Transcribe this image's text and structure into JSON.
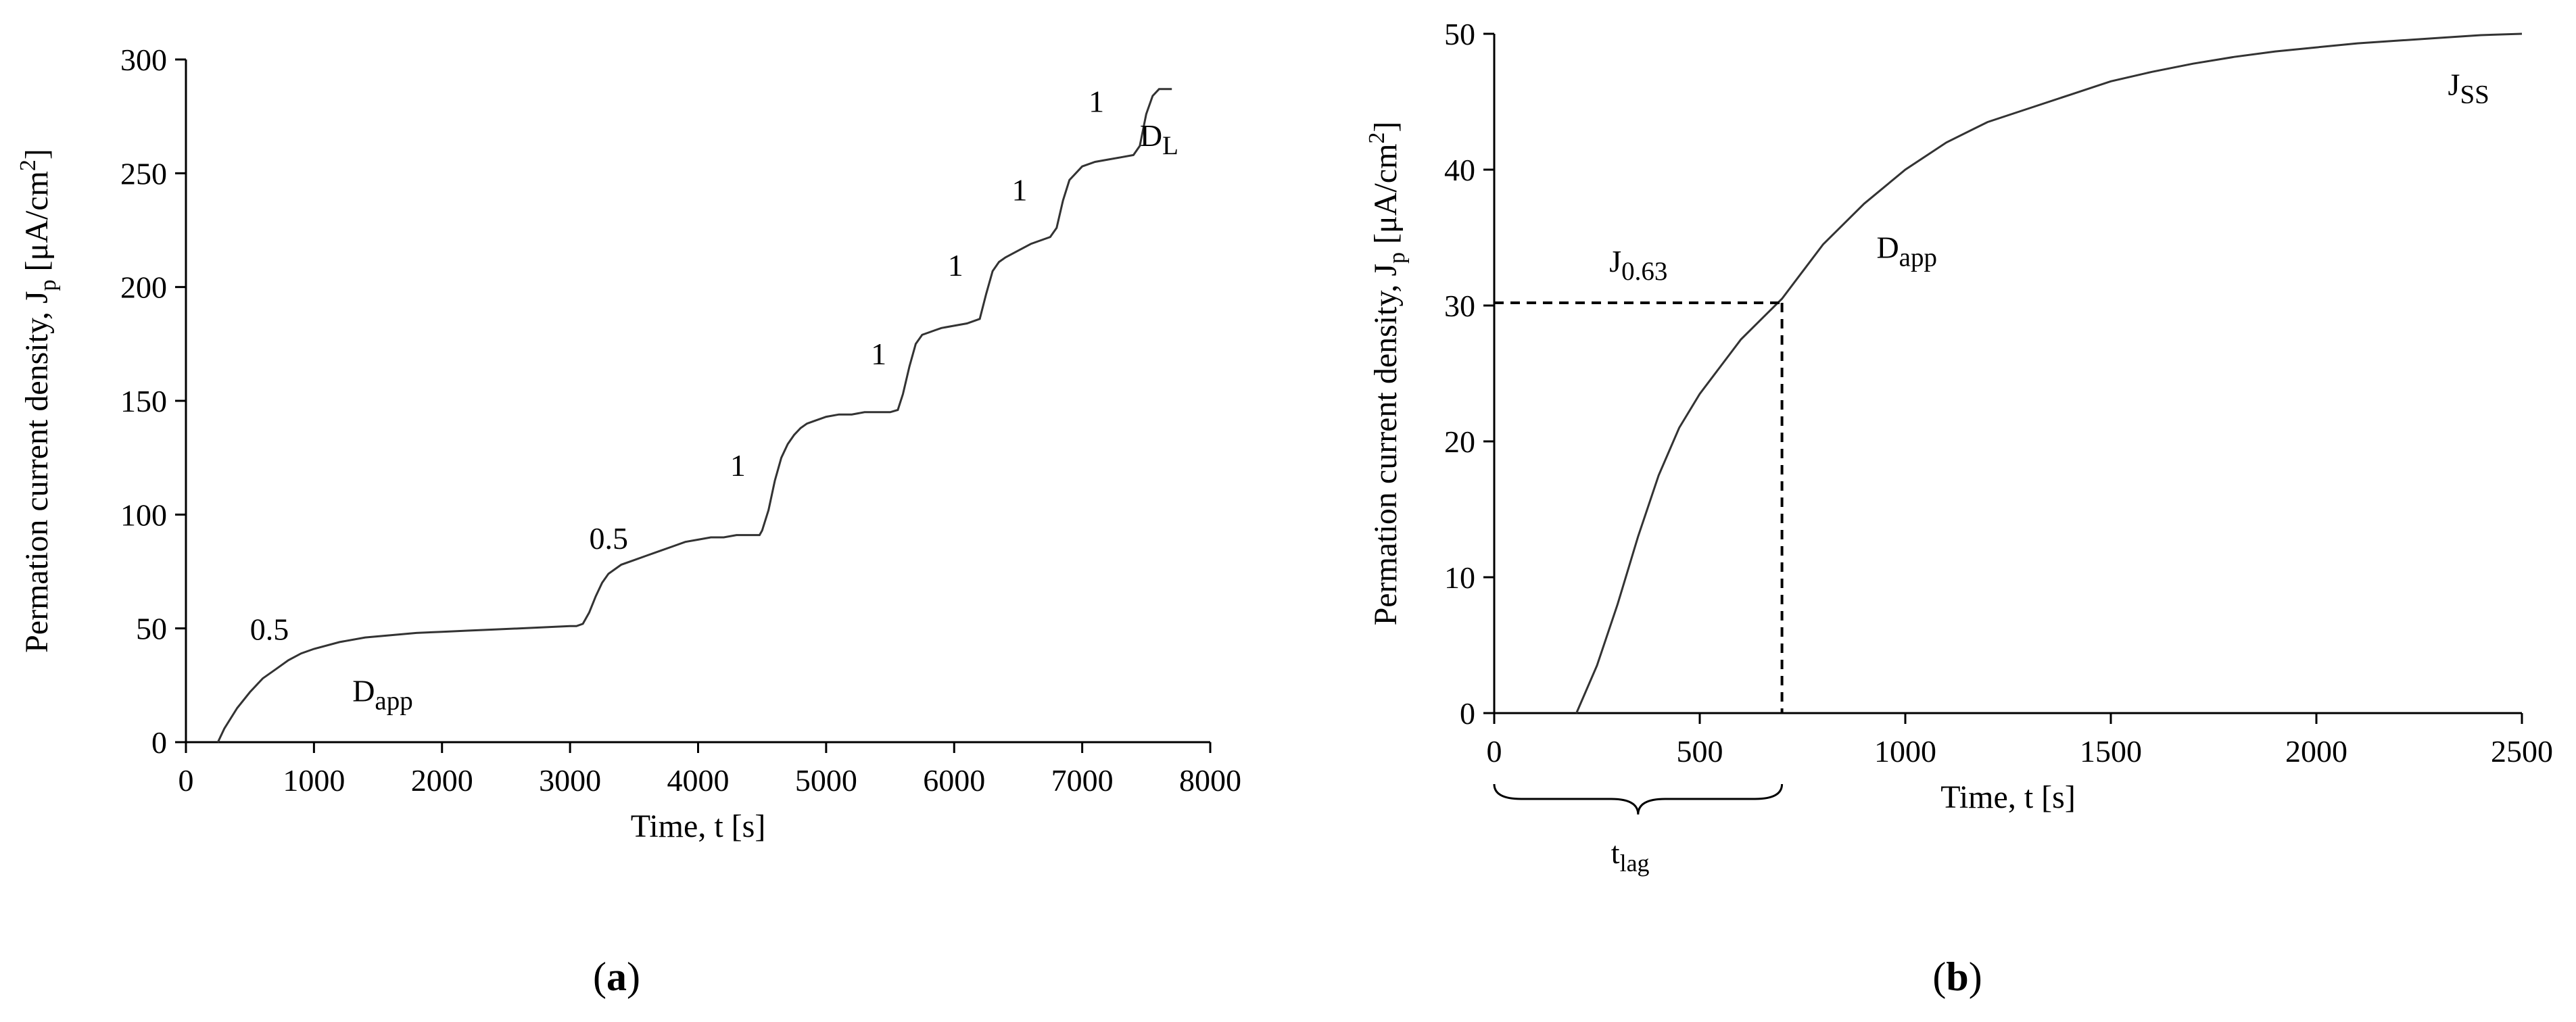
{
  "chart_data": [
    {
      "panel": "a",
      "panel_label": "a",
      "type": "line",
      "xlabel": "Time, t [s]",
      "ylabel_main": "Permation current density, J",
      "ylabel_sub": "p",
      "ylabel_unit": " [μA/cm",
      "ylabel_sup": "2",
      "ylabel_end": "]",
      "xlim": [
        0,
        8000
      ],
      "ylim": [
        0,
        300
      ],
      "xticks": [
        0,
        1000,
        2000,
        3000,
        4000,
        5000,
        6000,
        7000,
        8000
      ],
      "yticks": [
        0,
        50,
        100,
        150,
        200,
        250,
        300
      ],
      "series": [
        {
          "x": [
            250,
            300,
            400,
            500,
            600,
            700,
            800,
            900,
            1000,
            1200,
            1400,
            1600,
            1800,
            2000,
            2200,
            2400,
            2600,
            2800,
            3000,
            3050,
            3100,
            3150,
            3200,
            3250,
            3300,
            3350,
            3400,
            3500,
            3600,
            3700,
            3800,
            3900,
            4000,
            4100,
            4200,
            4300,
            4400,
            4480,
            4500,
            4550,
            4600,
            4650,
            4700,
            4750,
            4800,
            4850,
            4900,
            5000,
            5100,
            5200,
            5300,
            5400,
            5500,
            5560,
            5600,
            5650,
            5700,
            5750,
            5800,
            5850,
            5900,
            6000,
            6100,
            6200,
            6250,
            6300,
            6350,
            6400,
            6500,
            6600,
            6700,
            6750,
            6800,
            6850,
            6900,
            7000,
            7100,
            7200,
            7300,
            7400,
            7450,
            7500,
            7550,
            7600,
            7700
          ],
          "y": [
            0,
            6,
            15,
            22,
            28,
            32,
            36,
            39,
            41,
            44,
            46,
            47,
            48,
            48.5,
            49,
            49.5,
            50,
            50.5,
            51,
            51,
            52,
            57,
            64,
            70,
            74,
            76,
            78,
            80,
            82,
            84,
            86,
            88,
            89,
            90,
            90,
            91,
            91,
            91,
            93,
            102,
            115,
            125,
            131,
            135,
            138,
            140,
            141,
            143,
            144,
            144,
            145,
            145,
            145,
            146,
            153,
            165,
            175,
            179,
            180,
            181,
            182,
            183,
            184,
            186,
            197,
            207,
            211,
            213,
            216,
            219,
            221,
            222,
            226,
            238,
            247,
            253,
            255,
            256,
            257,
            258,
            262,
            276,
            284,
            287,
            287
          ]
        }
      ],
      "annotations": [
        {
          "text": "0.5",
          "x": 500,
          "y": 45
        },
        {
          "text": "D",
          "sub": "app",
          "x": 1300,
          "y": 18
        },
        {
          "text": "0.5",
          "x": 3150,
          "y": 85
        },
        {
          "text": "1",
          "x": 4250,
          "y": 117
        },
        {
          "text": "1",
          "x": 5350,
          "y": 166
        },
        {
          "text": "1",
          "x": 5950,
          "y": 205
        },
        {
          "text": "1",
          "x": 6450,
          "y": 238
        },
        {
          "text": "1",
          "x": 7050,
          "y": 277
        },
        {
          "text": "D",
          "sub": "L",
          "x": 7450,
          "y": 262
        }
      ]
    },
    {
      "panel": "b",
      "panel_label": "b",
      "type": "line",
      "xlabel": "Time, t [s]",
      "ylabel_main": "Permation current density, J",
      "ylabel_sub": "p",
      "ylabel_unit": " [μA/cm",
      "ylabel_sup": "2",
      "ylabel_end": "]",
      "xlim": [
        0,
        2500
      ],
      "ylim": [
        0,
        50
      ],
      "xticks": [
        0,
        500,
        1000,
        1500,
        2000,
        2500
      ],
      "yticks": [
        0,
        10,
        20,
        30,
        40,
        50
      ],
      "series": [
        {
          "x": [
            200,
            250,
            300,
            350,
            400,
            450,
            500,
            550,
            600,
            650,
            700,
            800,
            900,
            1000,
            1100,
            1200,
            1300,
            1400,
            1500,
            1600,
            1700,
            1800,
            1900,
            2000,
            2100,
            2200,
            2300,
            2400,
            2500
          ],
          "y": [
            0,
            3.5,
            8,
            13,
            17.5,
            21,
            23.5,
            25.5,
            27.5,
            29,
            30.5,
            34.5,
            37.5,
            40,
            42,
            43.5,
            44.5,
            45.5,
            46.5,
            47.2,
            47.8,
            48.3,
            48.7,
            49,
            49.3,
            49.5,
            49.7,
            49.9,
            50
          ]
        }
      ],
      "marker": {
        "x": 700,
        "y": 30.2
      },
      "annotations": [
        {
          "text": "J",
          "sub": "0.63",
          "x": 280,
          "y": 32.5
        },
        {
          "text": "D",
          "sub": "app",
          "x": 930,
          "y": 33.5
        },
        {
          "text": "J",
          "sub": "SS",
          "x": 2320,
          "y": 45.5
        }
      ],
      "brace_label": {
        "text": "t",
        "sub": "lag"
      }
    }
  ]
}
